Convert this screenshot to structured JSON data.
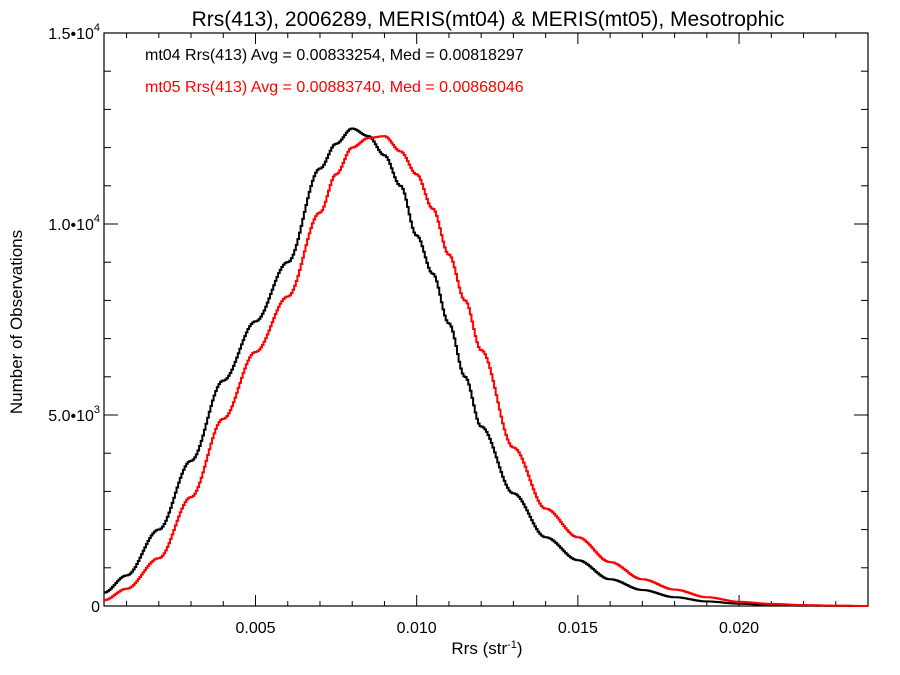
{
  "chart_data": {
    "type": "step-line",
    "title": "Rrs(413), 2006289, MERIS(mt04) & MERIS(mt05), Mesotrophic",
    "xlabel_main": "Rrs (str",
    "xlabel_sup": "-1",
    "xlabel_close": ")",
    "ylabel": "Number of Observations",
    "xlim": [
      0.0003,
      0.024
    ],
    "ylim": [
      0,
      15000
    ],
    "x_ticks": [
      {
        "value": 0.005,
        "label": "0.005"
      },
      {
        "value": 0.01,
        "label": "0.010"
      },
      {
        "value": 0.015,
        "label": "0.015"
      },
      {
        "value": 0.02,
        "label": "0.020"
      }
    ],
    "x_minor_step": 0.001,
    "y_ticks": [
      {
        "value": 0,
        "mant": "0",
        "exp": ""
      },
      {
        "value": 5000,
        "mant": "5.0•10",
        "exp": "3"
      },
      {
        "value": 10000,
        "mant": "1.0•10",
        "exp": "4"
      },
      {
        "value": 15000,
        "mant": "1.5•10",
        "exp": "4"
      }
    ],
    "y_minor_step": 1000,
    "series": [
      {
        "label": "mt04 Rrs(413) Avg = 0.00833254, Med = 0.00818297",
        "color": "#000000",
        "points": [
          [
            0.0003,
            350
          ],
          [
            0.001,
            800
          ],
          [
            0.002,
            2000
          ],
          [
            0.003,
            3800
          ],
          [
            0.004,
            5900
          ],
          [
            0.005,
            7450
          ],
          [
            0.006,
            9000
          ],
          [
            0.007,
            11450
          ],
          [
            0.0075,
            12100
          ],
          [
            0.008,
            12500
          ],
          [
            0.0085,
            12300
          ],
          [
            0.009,
            11800
          ],
          [
            0.0095,
            11000
          ],
          [
            0.01,
            9700
          ],
          [
            0.0105,
            8700
          ],
          [
            0.011,
            7400
          ],
          [
            0.0115,
            6000
          ],
          [
            0.012,
            4700
          ],
          [
            0.013,
            2950
          ],
          [
            0.014,
            1800
          ],
          [
            0.015,
            1200
          ],
          [
            0.016,
            700
          ],
          [
            0.017,
            420
          ],
          [
            0.018,
            230
          ],
          [
            0.019,
            120
          ],
          [
            0.02,
            60
          ],
          [
            0.021,
            25
          ],
          [
            0.022,
            10
          ],
          [
            0.023,
            3
          ],
          [
            0.024,
            0
          ]
        ]
      },
      {
        "label": "mt05 Rrs(413) Avg = 0.00883740, Med = 0.00868046",
        "color": "#ff0000",
        "points": [
          [
            0.0003,
            150
          ],
          [
            0.001,
            450
          ],
          [
            0.002,
            1250
          ],
          [
            0.003,
            2850
          ],
          [
            0.004,
            4900
          ],
          [
            0.005,
            6650
          ],
          [
            0.006,
            8100
          ],
          [
            0.007,
            10300
          ],
          [
            0.0075,
            11300
          ],
          [
            0.008,
            12000
          ],
          [
            0.0085,
            12250
          ],
          [
            0.009,
            12300
          ],
          [
            0.0095,
            11900
          ],
          [
            0.01,
            11300
          ],
          [
            0.0105,
            10400
          ],
          [
            0.011,
            9200
          ],
          [
            0.0115,
            8000
          ],
          [
            0.012,
            6700
          ],
          [
            0.013,
            4150
          ],
          [
            0.014,
            2550
          ],
          [
            0.015,
            1800
          ],
          [
            0.016,
            1150
          ],
          [
            0.017,
            700
          ],
          [
            0.018,
            430
          ],
          [
            0.019,
            230
          ],
          [
            0.02,
            110
          ],
          [
            0.021,
            55
          ],
          [
            0.022,
            25
          ],
          [
            0.023,
            10
          ],
          [
            0.024,
            0
          ]
        ]
      }
    ]
  }
}
